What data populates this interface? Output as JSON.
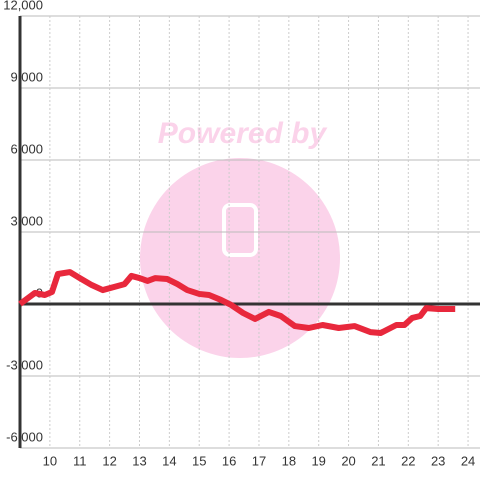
{
  "chart_data": {
    "type": "line",
    "watermark": "Powered by",
    "x": [
      9.0,
      9.5,
      9.83,
      10.07,
      10.27,
      10.67,
      11.0,
      11.4,
      11.77,
      12.27,
      12.5,
      12.73,
      13.0,
      13.27,
      13.53,
      13.93,
      14.27,
      14.6,
      15.0,
      15.33,
      15.73,
      16.07,
      16.47,
      16.87,
      17.33,
      17.73,
      18.2,
      18.67,
      19.13,
      19.67,
      20.2,
      20.73,
      21.07,
      21.6,
      21.87,
      22.13,
      22.4,
      22.6,
      23.0,
      23.57
    ],
    "values": [
      0,
      460,
      375,
      500,
      1250,
      1330,
      1080,
      790,
      580,
      750,
      830,
      1170,
      1080,
      960,
      1080,
      1040,
      830,
      580,
      420,
      375,
      170,
      -40,
      -375,
      -625,
      -330,
      -500,
      -920,
      -1000,
      -875,
      -1000,
      -920,
      -1170,
      -1210,
      -875,
      -875,
      -580,
      -500,
      -170,
      -210,
      -210
    ],
    "color": "#e8283c",
    "xlim": [
      9,
      24.4
    ],
    "xticks": [
      10,
      11,
      12,
      13,
      14,
      15,
      16,
      17,
      18,
      19,
      20,
      21,
      22,
      23,
      24
    ],
    "ylim": [
      -6000,
      12000
    ],
    "yticks": [
      {
        "value": -6000,
        "label": "-6,000"
      },
      {
        "value": -3000,
        "label": "-3,000"
      },
      0,
      {
        "value": 3000,
        "label": "3,000"
      },
      {
        "value": 6000,
        "label": "6,000"
      },
      {
        "value": 9000,
        "label": "9,000"
      },
      {
        "value": 12000,
        "label": "12,000"
      }
    ],
    "grid": true
  }
}
